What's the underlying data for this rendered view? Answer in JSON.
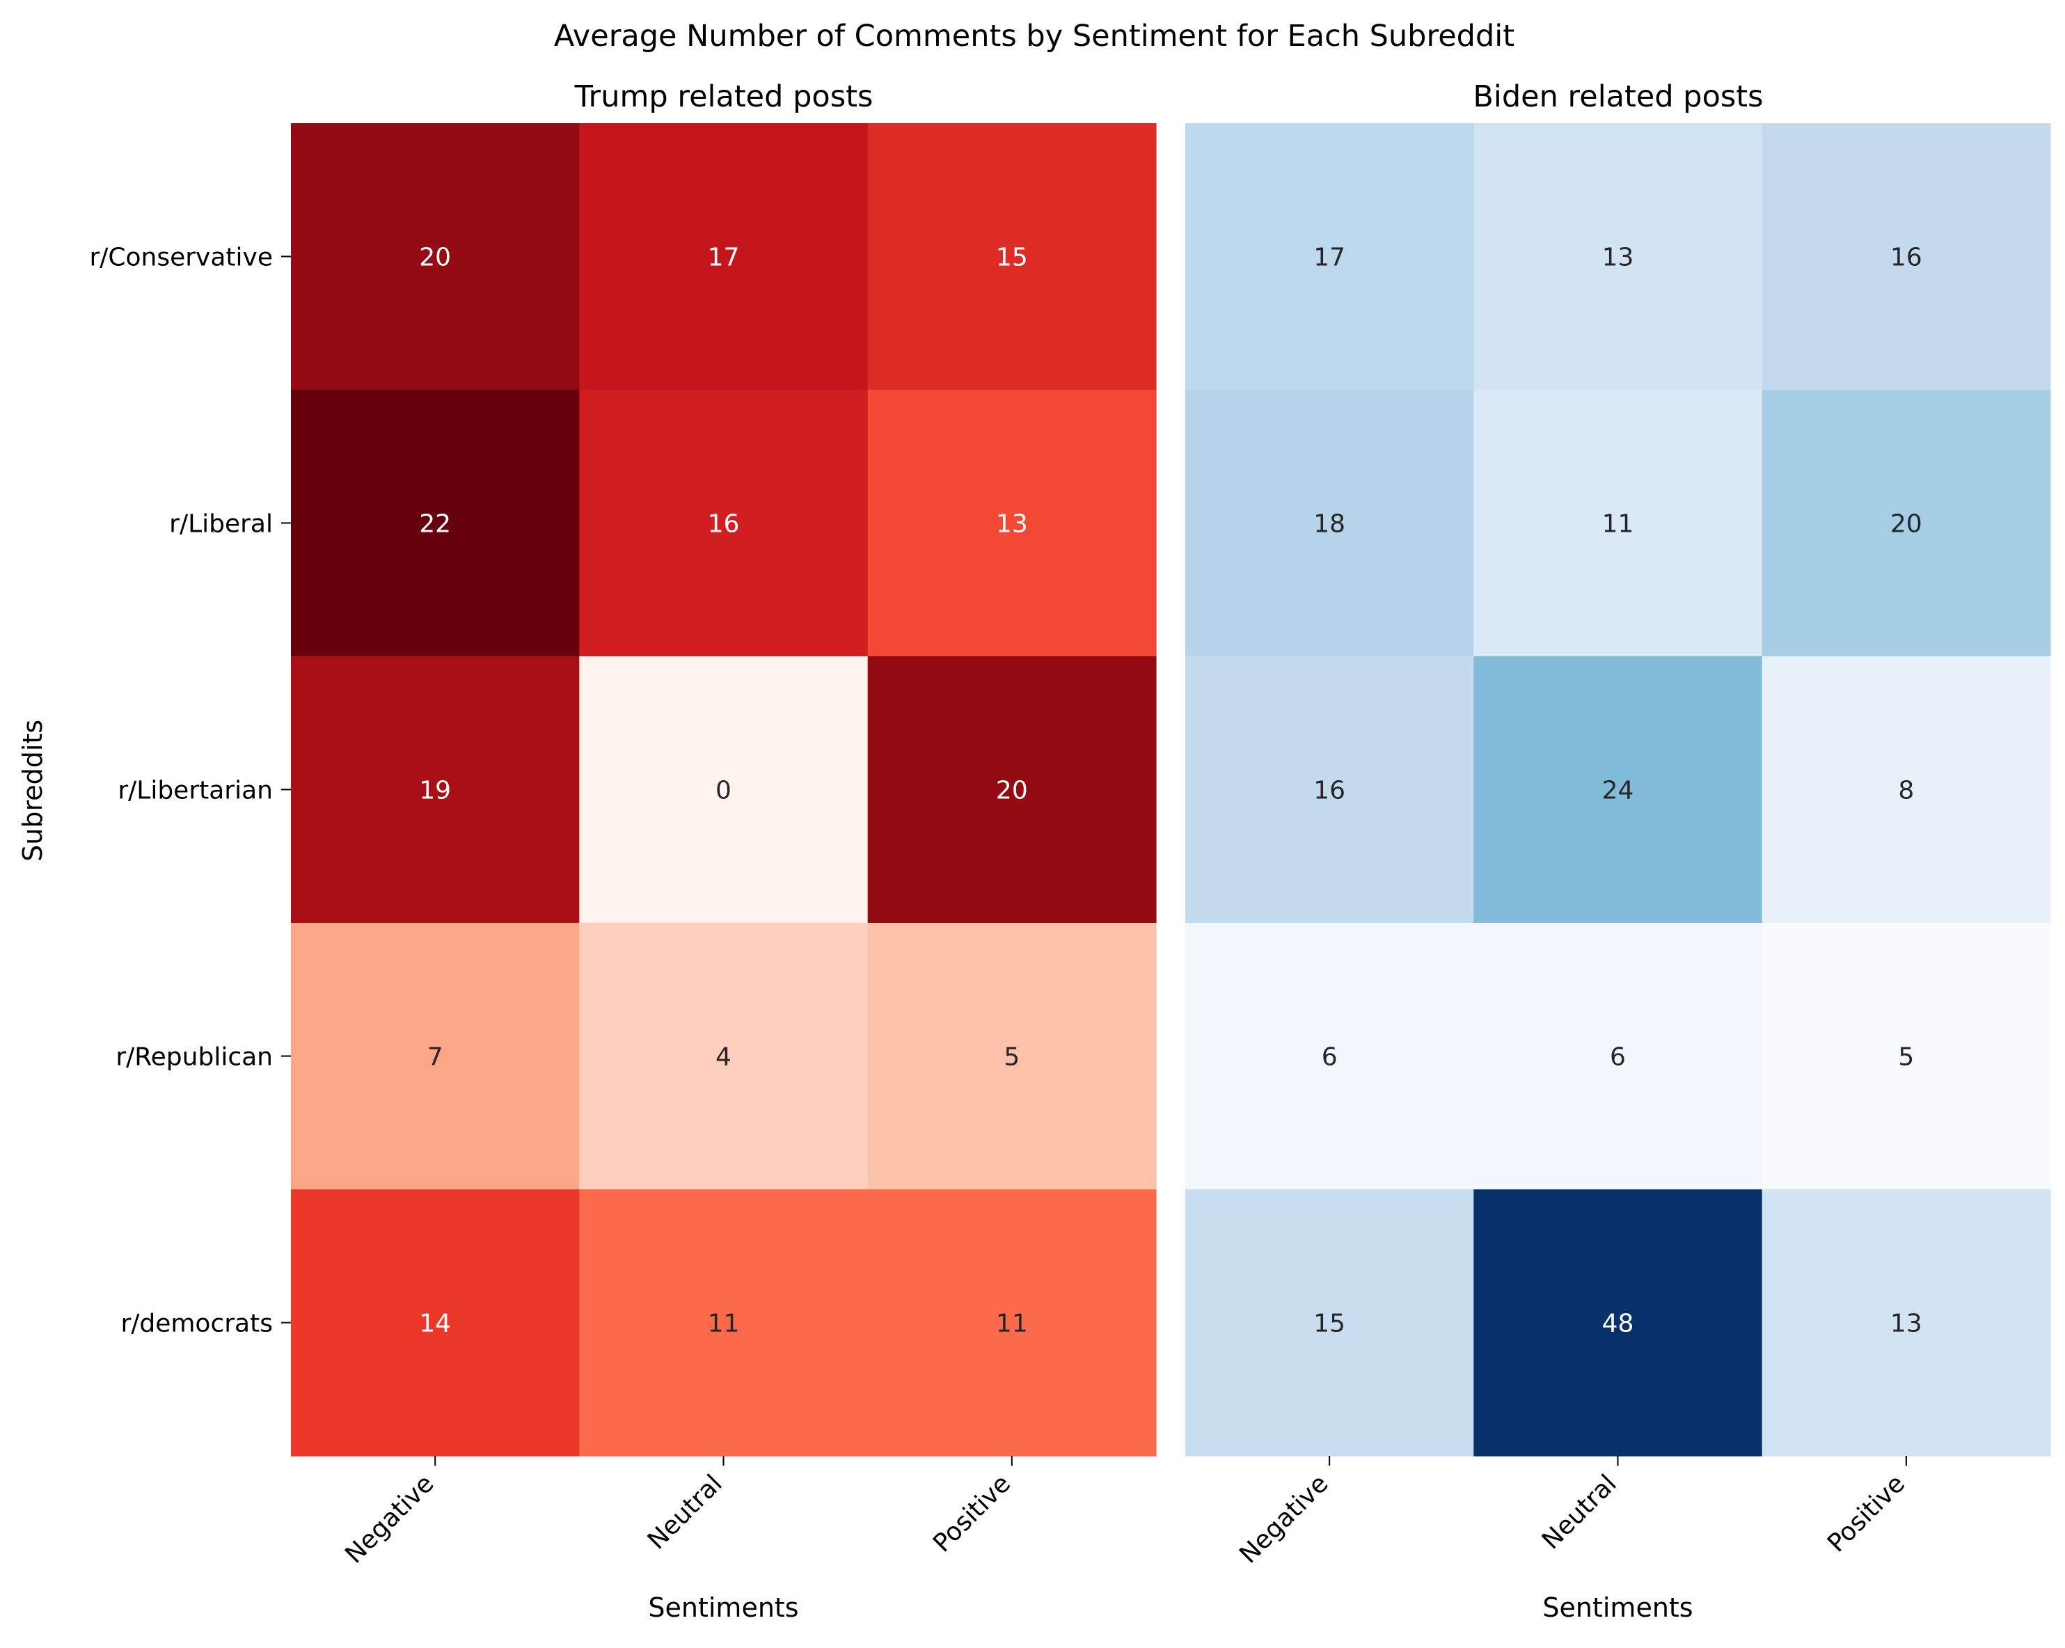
{
  "suptitle": "Average Number of Comments by Sentiment for Each Subreddit",
  "y_axis_label": "Subreddits",
  "chart_data": [
    {
      "type": "heatmap",
      "title": "Trump related posts",
      "xlabel": "Sentiments",
      "ylabel": "Subreddits",
      "colormap": "Reds",
      "x_categories": [
        "Negative",
        "Neutral",
        "Positive"
      ],
      "y_categories": [
        "r/Conservative",
        "r/Liberal",
        "r/Libertarian",
        "r/Republican",
        "r/democrats"
      ],
      "values": [
        [
          20,
          17,
          15
        ],
        [
          22,
          16,
          13
        ],
        [
          19,
          0,
          20
        ],
        [
          7,
          4,
          5
        ],
        [
          14,
          11,
          11
        ]
      ],
      "color_range": [
        0,
        22
      ],
      "colorbar": false
    },
    {
      "type": "heatmap",
      "title": "Biden related posts",
      "xlabel": "Sentiments",
      "colormap": "Blues",
      "x_categories": [
        "Negative",
        "Neutral",
        "Positive"
      ],
      "y_categories": [
        "r/Conservative",
        "r/Liberal",
        "r/Libertarian",
        "r/Republican",
        "r/democrats"
      ],
      "values": [
        [
          17,
          13,
          16
        ],
        [
          18,
          11,
          20
        ],
        [
          16,
          24,
          8
        ],
        [
          6,
          6,
          5
        ],
        [
          15,
          48,
          13
        ]
      ],
      "color_range": [
        5,
        48
      ],
      "colorbar": false
    }
  ]
}
